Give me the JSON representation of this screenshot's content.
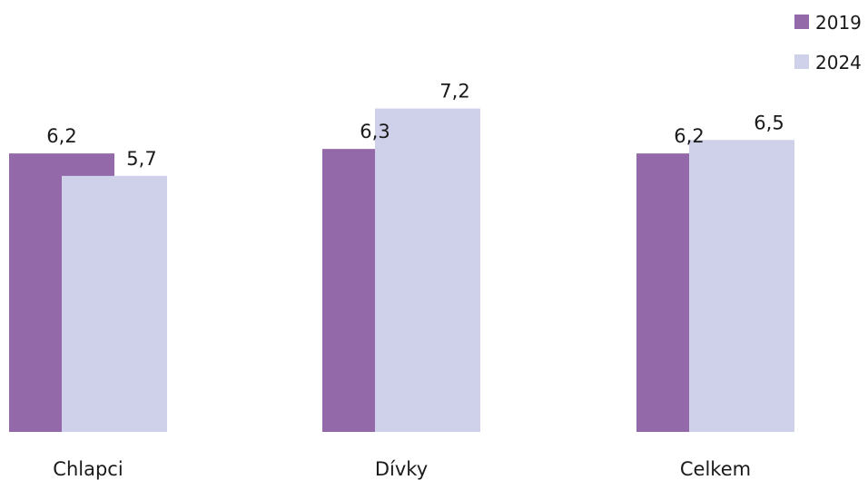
{
  "chart_data": {
    "type": "bar",
    "categories": [
      "Chlapci",
      "Dívky",
      "Celkem"
    ],
    "series": [
      {
        "name": "2019",
        "values": [
          6.2,
          6.3,
          6.2
        ],
        "labels": [
          "6,2",
          "6,3",
          "6,2"
        ],
        "color": "#9369a9"
      },
      {
        "name": "2024",
        "values": [
          5.7,
          7.2,
          6.5
        ],
        "labels": [
          "5,7",
          "7,2",
          "6,5"
        ],
        "color": "#cfd0ea"
      }
    ],
    "ylim": [
      0,
      8
    ],
    "legend": "top-right",
    "grid": false,
    "title": "",
    "xlabel": "",
    "ylabel": ""
  }
}
